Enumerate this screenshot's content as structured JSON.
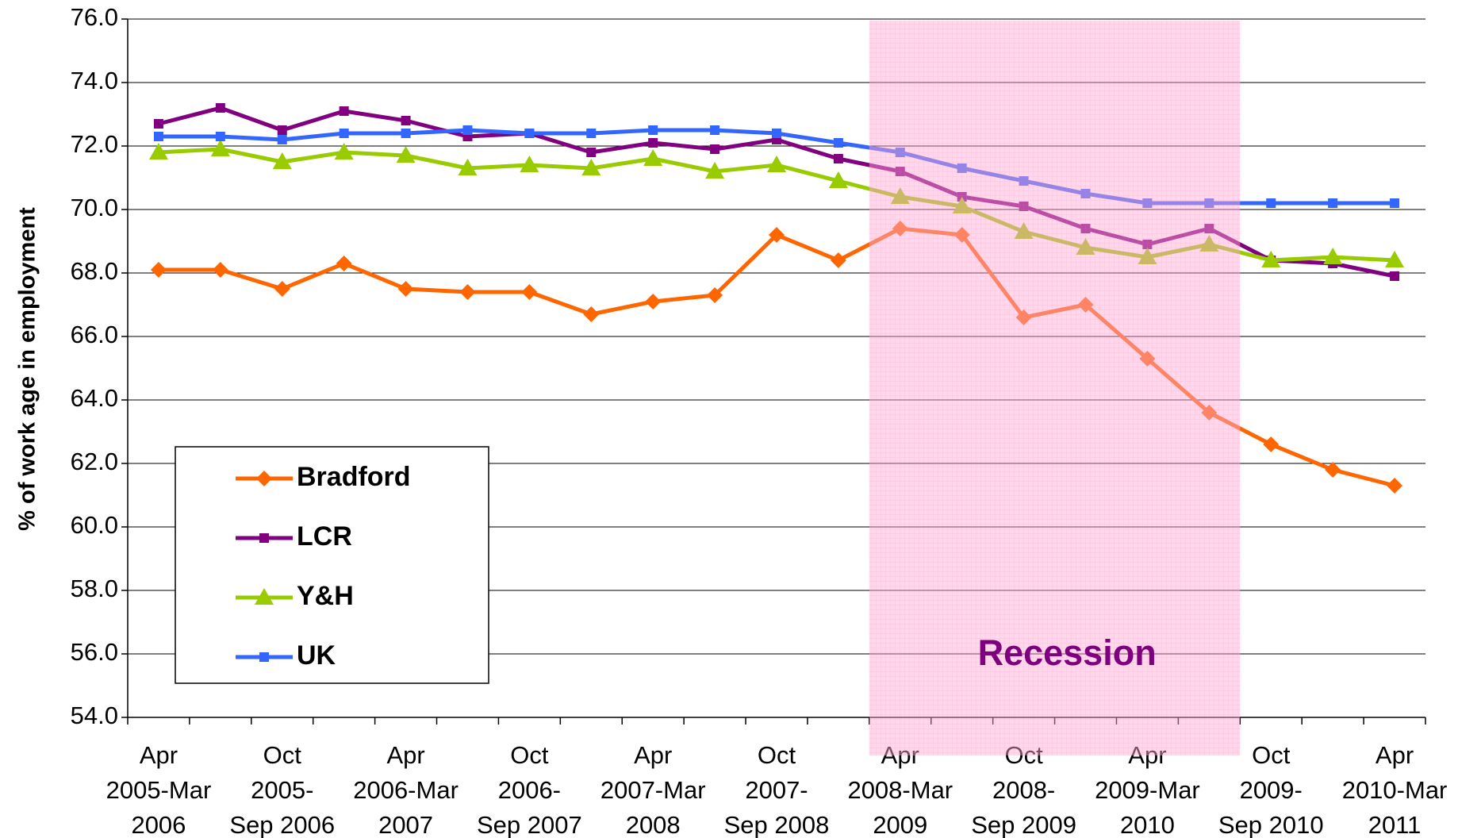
{
  "chart_data": {
    "type": "line",
    "y_label": "% of work age in employment",
    "annotation": "Recession",
    "categories": [
      "Apr\n2005-Mar\n2006",
      null,
      "Oct\n2005-\nSep 2006",
      null,
      "Apr\n2006-Mar\n2007",
      null,
      "Oct\n2006-\nSep 2007",
      null,
      "Apr\n2007-Mar\n2008",
      null,
      "Oct\n2007-\nSep 2008",
      null,
      "Apr\n2008-Mar\n2009",
      null,
      "Oct\n2008-\nSep 2009",
      null,
      "Apr\n2009-Mar\n2010",
      null,
      "Oct\n2009-\nSep 2010",
      null,
      "Apr\n2010-Mar\n2011"
    ],
    "series": [
      {
        "name": "Bradford",
        "color": "#ff6600",
        "marker": "diamond",
        "values": [
          68.1,
          68.1,
          67.5,
          68.3,
          67.5,
          67.4,
          67.4,
          66.7,
          67.1,
          67.3,
          69.2,
          68.4,
          69.4,
          69.2,
          66.6,
          67.0,
          65.3,
          63.6,
          62.6,
          61.8,
          61.3
        ]
      },
      {
        "name": "LCR",
        "color": "#800080",
        "marker": "square",
        "values": [
          72.7,
          73.2,
          72.5,
          73.1,
          72.8,
          72.3,
          72.4,
          71.8,
          72.1,
          71.9,
          72.2,
          71.6,
          71.2,
          70.4,
          70.1,
          69.4,
          68.9,
          69.4,
          68.4,
          68.3,
          67.9
        ]
      },
      {
        "name": "Y&H",
        "color": "#99cc00",
        "marker": "triangle",
        "values": [
          71.8,
          71.9,
          71.5,
          71.8,
          71.7,
          71.3,
          71.4,
          71.3,
          71.6,
          71.2,
          71.4,
          70.9,
          70.4,
          70.1,
          69.3,
          68.8,
          68.5,
          68.9,
          68.4,
          68.5,
          68.4
        ]
      },
      {
        "name": "UK",
        "color": "#3366ff",
        "marker": "square",
        "values": [
          72.3,
          72.3,
          72.2,
          72.4,
          72.4,
          72.5,
          72.4,
          72.4,
          72.5,
          72.5,
          72.4,
          72.1,
          71.8,
          71.3,
          70.9,
          70.5,
          70.2,
          70.2,
          70.2,
          70.2,
          70.2
        ]
      }
    ],
    "ylim": [
      54,
      76
    ],
    "yticks": [
      {
        "value": 54,
        "label": "54.0"
      },
      {
        "value": 56,
        "label": "56.0"
      },
      {
        "value": 58,
        "label": "58.0"
      },
      {
        "value": 60,
        "label": "60.0"
      },
      {
        "value": 62,
        "label": "62.0"
      },
      {
        "value": 64,
        "label": "64.0"
      },
      {
        "value": 66,
        "label": "66.0"
      },
      {
        "value": 68,
        "label": "68.0"
      },
      {
        "value": 70,
        "label": "70.0"
      },
      {
        "value": 72,
        "label": "72.0"
      },
      {
        "value": 74,
        "label": "74.0"
      },
      {
        "value": 76,
        "label": "76.0"
      }
    ],
    "grid": true
  }
}
